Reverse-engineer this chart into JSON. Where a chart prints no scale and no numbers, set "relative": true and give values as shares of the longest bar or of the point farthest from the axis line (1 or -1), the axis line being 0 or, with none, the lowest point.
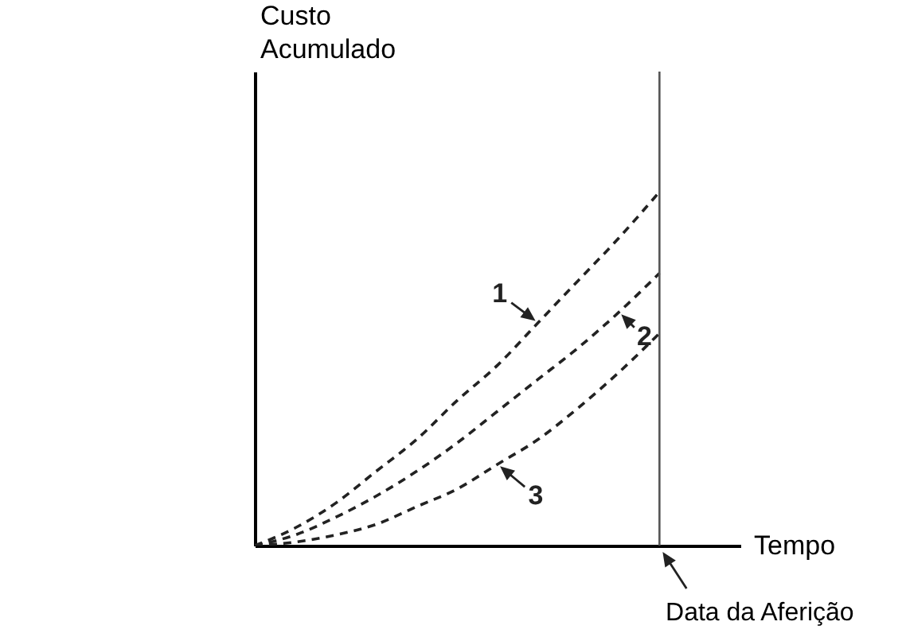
{
  "chart_data": {
    "type": "line",
    "relative": true,
    "xlabel": "Tempo",
    "ylabel": "Custo Acumulado",
    "categories": [
      null,
      null,
      null,
      null,
      null,
      null,
      null,
      null,
      null,
      null,
      null
    ],
    "series": [
      {
        "name": "1",
        "color": "#222222",
        "values": [
          0,
          0.05,
          0.12,
          0.21,
          0.3,
          0.41,
          0.51,
          0.63,
          0.75,
          0.87,
          1
        ]
      },
      {
        "name": "2",
        "color": "#222222",
        "values": [
          0,
          0.03,
          0.08,
          0.14,
          0.21,
          0.29,
          0.38,
          0.47,
          0.56,
          0.66,
          0.77
        ]
      },
      {
        "name": "3",
        "color": "#222222",
        "values": [
          0,
          0.01,
          0.03,
          0.06,
          0.11,
          0.16,
          0.23,
          0.3,
          0.39,
          0.49,
          0.6
        ]
      }
    ],
    "ref_lines": [
      {
        "axis": "x",
        "label": "Data da Aferição",
        "color": "#555555"
      }
    ],
    "line_style": "dashed",
    "marker": "none",
    "legend": "right"
  }
}
